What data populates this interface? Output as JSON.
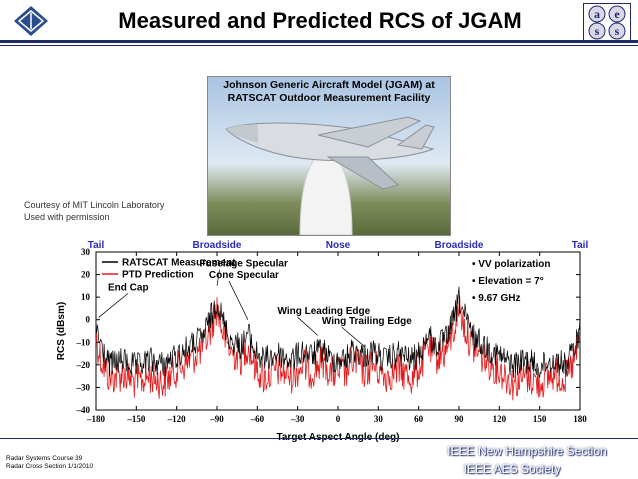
{
  "slide": {
    "title": "Measured and Predicted RCS of JGAM",
    "photo_caption_line1": "Johnson Generic Aircraft Model (JGAM) at",
    "photo_caption_line2": "RATSCAT Outdoor Measurement Facility",
    "courtesy_line1": "Courtesy of MIT Lincoln Laboratory",
    "courtesy_line2": "Used with permission",
    "footer_left_line1": "Radar Systems Course    39",
    "footer_left_line2": "Radar Cross Section  1/1/2010",
    "footer_right_line1": "IEEE New Hampshire Section",
    "footer_right_line2": "IEEE AES Society",
    "logo_right_letters": [
      "a",
      "e",
      "s",
      "s"
    ]
  },
  "colors": {
    "rule": "#1f2a6b",
    "measurement": "#000000",
    "prediction": "#e31a1c",
    "top_labels": "#2a2ab8"
  },
  "chart_data": {
    "type": "line",
    "xlabel": "Target Aspect Angle (deg)",
    "ylabel": "RCS (dBsm)",
    "xlim": [
      -180,
      180
    ],
    "ylim": [
      -40,
      30
    ],
    "xticks": [
      -180,
      -150,
      -120,
      -90,
      -60,
      -30,
      0,
      30,
      60,
      90,
      120,
      150,
      180
    ],
    "xtick_labels": [
      "–180",
      "–150",
      "–120",
      "–90",
      "–60",
      "–30",
      "0",
      "30",
      "60",
      "90",
      "120",
      "150",
      "180"
    ],
    "yticks": [
      -40,
      -30,
      -20,
      -10,
      0,
      10,
      20,
      30
    ],
    "ytick_labels": [
      "–40",
      "–30",
      "–20",
      "–10",
      "0",
      "10",
      "20",
      "30"
    ],
    "top_axis_labels": [
      {
        "x": -180,
        "label": "Tail"
      },
      {
        "x": -90,
        "label": "Broadside"
      },
      {
        "x": 0,
        "label": "Nose"
      },
      {
        "x": 90,
        "label": "Broadside"
      },
      {
        "x": 180,
        "label": "Tail"
      }
    ],
    "legend": {
      "placement": "top-left",
      "entries": [
        "RATSCAT Measurement",
        "PTD Prediction"
      ]
    },
    "notes": [
      "•  VV polarization",
      "•  Elevation = 7°",
      "•  9.67 GHz"
    ],
    "annotations": [
      {
        "text": "End Cap",
        "x": -178,
        "y": 1
      },
      {
        "text": "Fuselage Specular",
        "x": -90,
        "y": 15
      },
      {
        "text": "Cone Specular",
        "x": -70,
        "y": 0
      },
      {
        "text": "Wing Leading Edge",
        "x": -15,
        "y": -7
      },
      {
        "text": "Wing Trailing Edge",
        "x": 20,
        "y": -12
      }
    ],
    "series": [
      {
        "name": "RATSCAT Measurement",
        "envelope": [
          [
            -180,
            2
          ],
          [
            -176,
            -6
          ],
          [
            -170,
            -14
          ],
          [
            -160,
            -12
          ],
          [
            -150,
            -15
          ],
          [
            -140,
            -12
          ],
          [
            -130,
            -14
          ],
          [
            -120,
            -10
          ],
          [
            -110,
            -6
          ],
          [
            -100,
            -1
          ],
          [
            -94,
            8
          ],
          [
            -90,
            15
          ],
          [
            -86,
            6
          ],
          [
            -80,
            -3
          ],
          [
            -72,
            -6
          ],
          [
            -67,
            0
          ],
          [
            -62,
            -8
          ],
          [
            -55,
            -12
          ],
          [
            -45,
            -9
          ],
          [
            -35,
            -12
          ],
          [
            -26,
            -8
          ],
          [
            -20,
            -10
          ],
          [
            -11,
            -7
          ],
          [
            -5,
            -12
          ],
          [
            0,
            -11
          ],
          [
            5,
            -12
          ],
          [
            11,
            -7
          ],
          [
            20,
            -10
          ],
          [
            26,
            -8
          ],
          [
            35,
            -12
          ],
          [
            45,
            -9
          ],
          [
            55,
            -12
          ],
          [
            62,
            -8
          ],
          [
            67,
            0
          ],
          [
            72,
            -6
          ],
          [
            80,
            -3
          ],
          [
            86,
            6
          ],
          [
            90,
            15
          ],
          [
            94,
            8
          ],
          [
            100,
            -1
          ],
          [
            110,
            -6
          ],
          [
            120,
            -10
          ],
          [
            130,
            -14
          ],
          [
            140,
            -12
          ],
          [
            150,
            -15
          ],
          [
            160,
            -12
          ],
          [
            170,
            -14
          ],
          [
            176,
            -6
          ],
          [
            180,
            2
          ]
        ]
      },
      {
        "name": "PTD Prediction",
        "envelope": [
          [
            -180,
            0
          ],
          [
            -176,
            -10
          ],
          [
            -170,
            -18
          ],
          [
            -160,
            -16
          ],
          [
            -150,
            -20
          ],
          [
            -140,
            -17
          ],
          [
            -130,
            -20
          ],
          [
            -120,
            -14
          ],
          [
            -110,
            -10
          ],
          [
            -100,
            -4
          ],
          [
            -94,
            5
          ],
          [
            -90,
            14
          ],
          [
            -86,
            3
          ],
          [
            -80,
            -6
          ],
          [
            -72,
            -9
          ],
          [
            -67,
            -3
          ],
          [
            -62,
            -12
          ],
          [
            -55,
            -18
          ],
          [
            -45,
            -14
          ],
          [
            -35,
            -17
          ],
          [
            -26,
            -12
          ],
          [
            -20,
            -15
          ],
          [
            -11,
            -10
          ],
          [
            -5,
            -16
          ],
          [
            0,
            -15
          ],
          [
            5,
            -16
          ],
          [
            11,
            -10
          ],
          [
            20,
            -15
          ],
          [
            26,
            -12
          ],
          [
            35,
            -17
          ],
          [
            45,
            -14
          ],
          [
            55,
            -18
          ],
          [
            62,
            -12
          ],
          [
            67,
            -3
          ],
          [
            72,
            -9
          ],
          [
            80,
            -6
          ],
          [
            86,
            3
          ],
          [
            90,
            14
          ],
          [
            94,
            5
          ],
          [
            100,
            -4
          ],
          [
            110,
            -10
          ],
          [
            120,
            -14
          ],
          [
            130,
            -20
          ],
          [
            140,
            -17
          ],
          [
            150,
            -20
          ],
          [
            160,
            -16
          ],
          [
            170,
            -18
          ],
          [
            176,
            -10
          ],
          [
            180,
            0
          ]
        ]
      }
    ]
  }
}
